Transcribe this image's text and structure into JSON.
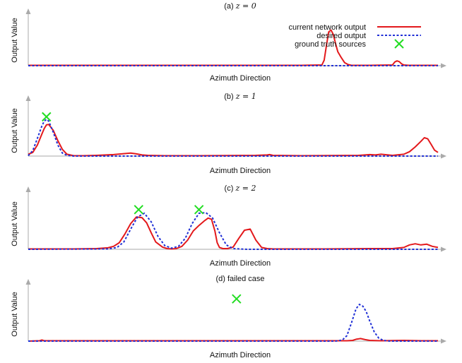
{
  "colors": {
    "current": "#e3191c",
    "desired": "#1f2fd6",
    "ground_truth": "#22dd22",
    "axis": "#aaaaaa",
    "text": "#111111"
  },
  "legend": {
    "placement": "top-right of panel (a)",
    "current": "current network output",
    "desired": "desired output",
    "ground_truth": "ground truth sources"
  },
  "chart_data": [
    {
      "type": "line",
      "title_prefix": "(a) ",
      "title_math": "z = 0",
      "xlabel": "Azimuth Direction",
      "ylabel": "Output Value",
      "xlim": [
        0,
        360
      ],
      "ylim": [
        0,
        1.15
      ],
      "grid": false,
      "series": [
        {
          "name": "current network output",
          "x": [
            0,
            40,
            80,
            120,
            160,
            200,
            240,
            258,
            260,
            262,
            264,
            266,
            268,
            270,
            272,
            275,
            278,
            281,
            284,
            300,
            320,
            322,
            324,
            326,
            328,
            330,
            334,
            340,
            360
          ],
          "y": [
            0.01,
            0.01,
            0.01,
            0.01,
            0.01,
            0.01,
            0.01,
            0.02,
            0.15,
            0.55,
            0.92,
            0.97,
            0.85,
            0.6,
            0.38,
            0.22,
            0.08,
            0.03,
            0.01,
            0.01,
            0.02,
            0.1,
            0.13,
            0.11,
            0.05,
            0.02,
            0.01,
            0.01,
            0.01
          ]
        },
        {
          "name": "desired output",
          "x": [
            0,
            360
          ],
          "y": [
            0,
            0
          ]
        }
      ],
      "ground_truth_sources": []
    },
    {
      "type": "line",
      "title_prefix": "(b) ",
      "title_math": "z = 1",
      "xlabel": "Azimuth Direction",
      "ylabel": "Output Value",
      "xlim": [
        0,
        360
      ],
      "ylim": [
        0,
        1.15
      ],
      "grid": false,
      "series": [
        {
          "name": "current network output",
          "x": [
            0,
            4,
            8,
            12,
            14,
            16,
            18,
            22,
            26,
            30,
            34,
            40,
            48,
            60,
            75,
            90,
            95,
            100,
            105,
            120,
            150,
            200,
            210,
            212,
            215,
            240,
            290,
            300,
            305,
            310,
            320,
            330,
            335,
            340,
            345,
            348,
            351,
            354,
            357,
            360
          ],
          "y": [
            0.05,
            0.1,
            0.3,
            0.6,
            0.75,
            0.85,
            0.86,
            0.7,
            0.42,
            0.18,
            0.05,
            0.01,
            0.01,
            0.02,
            0.04,
            0.08,
            0.06,
            0.03,
            0.02,
            0.01,
            0.01,
            0.02,
            0.03,
            0.04,
            0.02,
            0.01,
            0.02,
            0.04,
            0.03,
            0.05,
            0.02,
            0.05,
            0.12,
            0.25,
            0.4,
            0.5,
            0.47,
            0.32,
            0.16,
            0.1
          ]
        },
        {
          "name": "desired output",
          "x": [
            0,
            4,
            8,
            12,
            14,
            16,
            18,
            22,
            26,
            30,
            34,
            40,
            360
          ],
          "y": [
            0.01,
            0.15,
            0.48,
            0.82,
            0.95,
            1.0,
            0.95,
            0.65,
            0.3,
            0.08,
            0.02,
            0,
            0
          ]
        }
      ],
      "ground_truth_sources": [
        {
          "x": 16,
          "y": 1.07
        }
      ]
    },
    {
      "type": "line",
      "title_prefix": "(c) ",
      "title_math": "z = 2",
      "xlabel": "Azimuth Direction",
      "ylabel": "Output Value",
      "xlim": [
        0,
        360
      ],
      "ylim": [
        0,
        1.15
      ],
      "grid": false,
      "series": [
        {
          "name": "current network output",
          "x": [
            0,
            40,
            60,
            70,
            75,
            80,
            85,
            90,
            95,
            100,
            104,
            108,
            112,
            118,
            122,
            126,
            130,
            135,
            140,
            145,
            150,
            155,
            158,
            161,
            164,
            166,
            168,
            171,
            175,
            180,
            185,
            190,
            195,
            200,
            205,
            210,
            215,
            230,
            260,
            300,
            320,
            330,
            335,
            340,
            345,
            350,
            355,
            360
          ],
          "y": [
            0.01,
            0.01,
            0.02,
            0.04,
            0.08,
            0.18,
            0.42,
            0.7,
            0.88,
            0.86,
            0.72,
            0.45,
            0.2,
            0.06,
            0.02,
            0.01,
            0.02,
            0.08,
            0.25,
            0.5,
            0.65,
            0.78,
            0.85,
            0.82,
            0.5,
            0.18,
            0.05,
            0.02,
            0.02,
            0.06,
            0.3,
            0.52,
            0.55,
            0.25,
            0.05,
            0.02,
            0.01,
            0.01,
            0.01,
            0.02,
            0.02,
            0.05,
            0.12,
            0.15,
            0.12,
            0.14,
            0.08,
            0.05
          ]
        },
        {
          "name": "desired output",
          "x": [
            0,
            70,
            78,
            84,
            90,
            96,
            102,
            108,
            114,
            120,
            126,
            132,
            138,
            144,
            150,
            156,
            162,
            168,
            174,
            180,
            186,
            192,
            360
          ],
          "y": [
            0,
            0.01,
            0.05,
            0.2,
            0.55,
            0.88,
            0.98,
            0.75,
            0.35,
            0.1,
            0.03,
            0.08,
            0.3,
            0.7,
            0.98,
            1.0,
            0.85,
            0.45,
            0.12,
            0.02,
            0.01,
            0,
            0
          ]
        }
      ],
      "ground_truth_sources": [
        {
          "x": 97,
          "y": 1.08
        },
        {
          "x": 150,
          "y": 1.08
        }
      ]
    },
    {
      "type": "line",
      "title_prefix": "(d) failed case",
      "title_math": "",
      "xlabel": "Azimuth Direction",
      "ylabel": "Output Value",
      "xlim": [
        0,
        360
      ],
      "ylim": [
        0,
        1.15
      ],
      "grid": false,
      "series": [
        {
          "name": "current network output",
          "x": [
            0,
            10,
            12,
            14,
            20,
            100,
            200,
            280,
            285,
            288,
            292,
            296,
            300,
            310,
            330,
            345,
            360
          ],
          "y": [
            0,
            0.01,
            0.03,
            0.01,
            0.01,
            0.01,
            0.01,
            0.01,
            0.02,
            0.05,
            0.07,
            0.04,
            0.02,
            0.01,
            0.02,
            0.01,
            0.01
          ]
        },
        {
          "name": "desired output",
          "x": [
            0,
            270,
            276,
            280,
            284,
            288,
            291,
            294,
            297,
            300,
            304,
            308,
            312,
            318,
            360
          ],
          "y": [
            0,
            0,
            0.03,
            0.15,
            0.5,
            0.88,
            1.0,
            0.95,
            0.8,
            0.55,
            0.25,
            0.08,
            0.02,
            0,
            0
          ]
        }
      ],
      "ground_truth_sources": [
        {
          "x": 183,
          "y": 1.15
        }
      ]
    }
  ]
}
